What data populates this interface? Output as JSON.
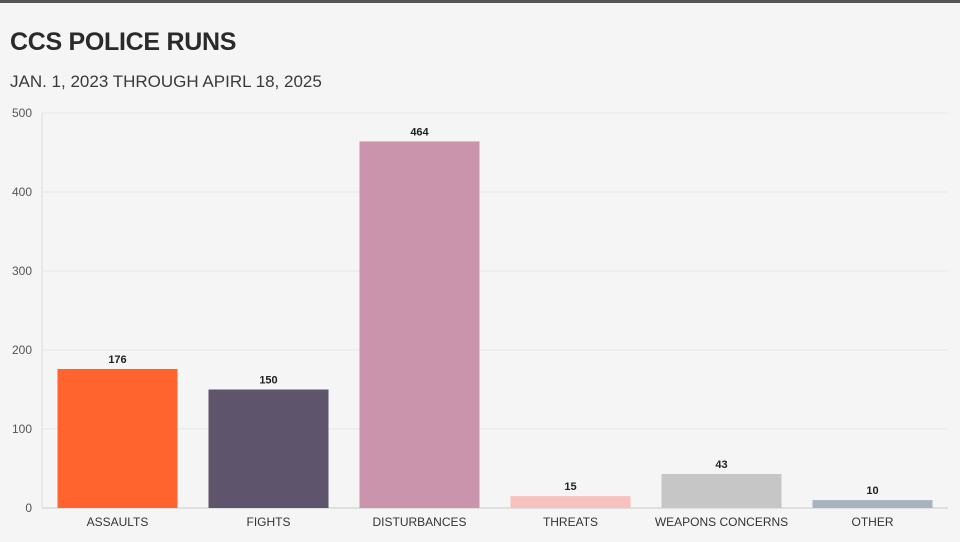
{
  "header": {
    "title": "CCS POLICE RUNS",
    "subtitle": "JAN. 1, 2023 THROUGH APIRL 18, 2025"
  },
  "chart_data": {
    "type": "bar",
    "title": "CCS POLICE RUNS",
    "subtitle": "JAN. 1, 2023 THROUGH APIRL 18, 2025",
    "xlabel": "",
    "ylabel": "",
    "categories": [
      "ASSAULTS",
      "FIGHTS",
      "DISTURBANCES",
      "THREATS",
      "WEAPONS CONCERNS",
      "OTHER"
    ],
    "values": [
      176,
      150,
      464,
      15,
      43,
      10
    ],
    "data_labels": [
      "176",
      "150",
      "464",
      "15",
      "43",
      "10"
    ],
    "colors": [
      "#ff632e",
      "#5e546b",
      "#cb94ad",
      "#f7c1bd",
      "#c6c6c6",
      "#a9b2bf"
    ],
    "ylim": [
      0,
      500
    ],
    "yticks": [
      0,
      100,
      200,
      300,
      400,
      500
    ],
    "ytick_labels": [
      "0",
      "100",
      "200",
      "300",
      "400",
      "500"
    ],
    "grid": true,
    "legend": "none"
  }
}
